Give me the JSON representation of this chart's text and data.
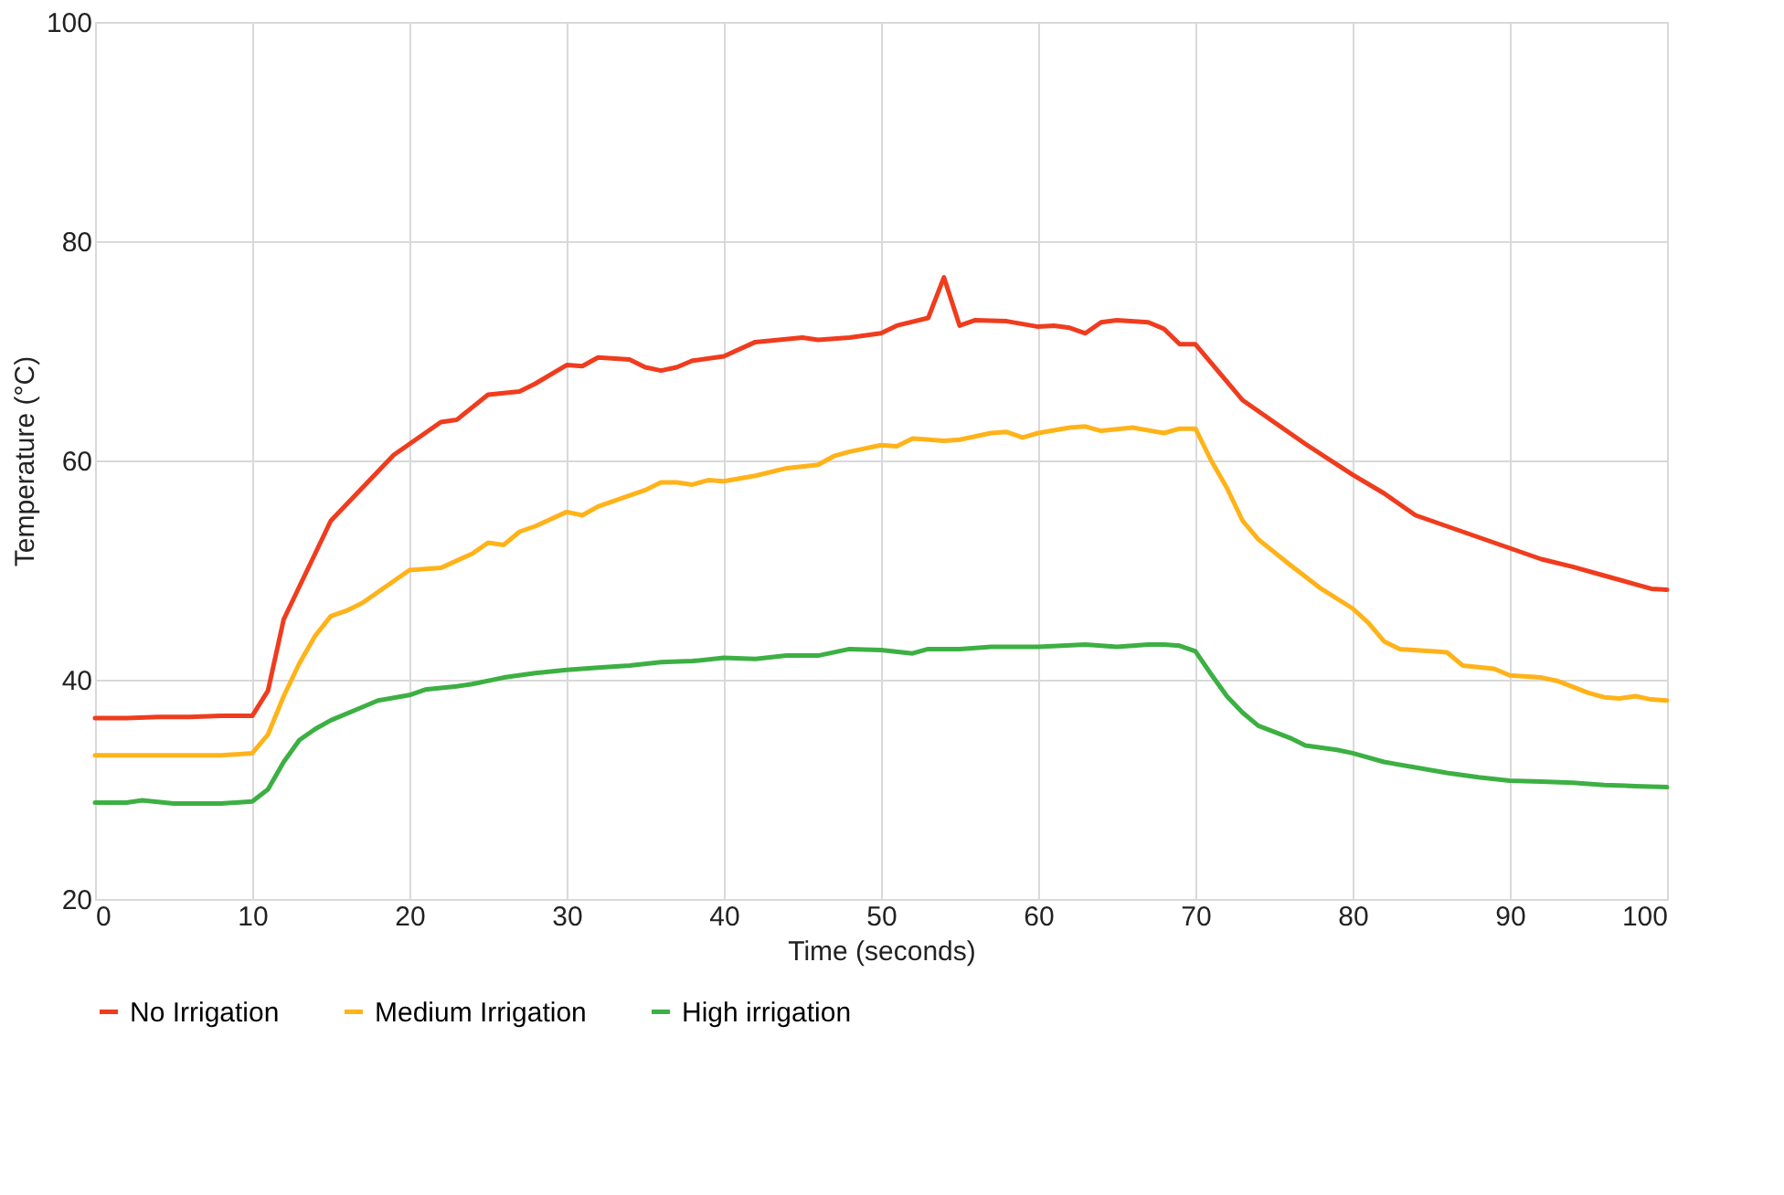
{
  "chart_data": {
    "type": "line",
    "xlabel": "Time (seconds)",
    "ylabel": "Temperature (°C)",
    "xlim": [
      0,
      100
    ],
    "xticks": [
      0,
      10,
      20,
      30,
      40,
      50,
      60,
      70,
      80,
      90,
      100
    ],
    "ylim": [
      20,
      100
    ],
    "yticks": [
      20,
      40,
      60,
      80,
      100
    ],
    "grid": true,
    "legend": "bottom",
    "marker": "none",
    "line_style": "solid",
    "series": [
      {
        "name": "No Irrigation",
        "color": "#f03c1e",
        "x": [
          0,
          2,
          4,
          6,
          8,
          10,
          11,
          12,
          13,
          14,
          15,
          16,
          17,
          18,
          19,
          20,
          22,
          23,
          25,
          27,
          28,
          30,
          31,
          32,
          34,
          35,
          36,
          37,
          38,
          40,
          42,
          45,
          46,
          48,
          50,
          51,
          53,
          54,
          55,
          56,
          58,
          60,
          61,
          62,
          63,
          64,
          65,
          67,
          68,
          69,
          70,
          72,
          73,
          75,
          77,
          80,
          82,
          84,
          86,
          88,
          90,
          92,
          94,
          96,
          98,
          99,
          100
        ],
        "values": [
          36.5,
          36.5,
          36.6,
          36.6,
          36.7,
          36.7,
          39,
          45.5,
          48.5,
          51.5,
          54.5,
          56,
          57.5,
          59,
          60.5,
          61.5,
          63.5,
          63.7,
          66,
          66.3,
          67,
          68.7,
          68.6,
          69.4,
          69.2,
          68.5,
          68.2,
          68.5,
          69.1,
          69.5,
          70.8,
          71.2,
          71,
          71.2,
          71.6,
          72.3,
          73,
          76.7,
          72.3,
          72.8,
          72.7,
          72.2,
          72.3,
          72.1,
          71.6,
          72.6,
          72.8,
          72.6,
          72,
          70.6,
          70.6,
          67.2,
          65.5,
          63.5,
          61.5,
          58.7,
          57,
          55,
          54,
          53,
          52,
          51,
          50.3,
          49.5,
          48.7,
          48.3,
          48.2
        ]
      },
      {
        "name": "Medium Irrigation",
        "color": "#ffb319",
        "x": [
          0,
          2,
          4,
          6,
          8,
          10,
          11,
          12,
          13,
          14,
          15,
          16,
          17,
          18,
          19,
          20,
          22,
          24,
          25,
          26,
          27,
          28,
          30,
          31,
          32,
          34,
          35,
          36,
          37,
          38,
          39,
          40,
          42,
          44,
          46,
          47,
          48,
          50,
          51,
          52,
          54,
          55,
          57,
          58,
          59,
          60,
          62,
          63,
          64,
          66,
          68,
          69,
          70,
          71,
          72,
          73,
          74,
          76,
          78,
          80,
          81,
          82,
          83,
          85,
          86,
          87,
          89,
          90,
          92,
          93,
          95,
          96,
          97,
          98,
          99,
          100
        ],
        "values": [
          33.1,
          33.1,
          33.1,
          33.1,
          33.1,
          33.3,
          35,
          38.5,
          41.5,
          44,
          45.8,
          46.3,
          47,
          48,
          49,
          50,
          50.2,
          51.5,
          52.5,
          52.3,
          53.5,
          54,
          55.3,
          55,
          55.8,
          56.8,
          57.3,
          58,
          58,
          57.8,
          58.2,
          58.1,
          58.6,
          59.3,
          59.6,
          60.4,
          60.8,
          61.4,
          61.3,
          62,
          61.8,
          61.9,
          62.5,
          62.6,
          62.1,
          62.5,
          63,
          63.1,
          62.7,
          63,
          62.5,
          62.9,
          62.9,
          60,
          57.5,
          54.5,
          52.8,
          50.5,
          48.3,
          46.5,
          45.2,
          43.5,
          42.8,
          42.6,
          42.5,
          41.3,
          41,
          40.4,
          40.2,
          39.9,
          38.8,
          38.4,
          38.3,
          38.5,
          38.2,
          38.1
        ]
      },
      {
        "name": "High irrigation",
        "color": "#3cb043",
        "x": [
          0,
          2,
          3,
          5,
          8,
          10,
          11,
          12,
          13,
          14,
          15,
          17,
          18,
          20,
          21,
          23,
          24,
          26,
          28,
          30,
          32,
          34,
          36,
          38,
          40,
          42,
          44,
          46,
          48,
          50,
          52,
          53,
          55,
          57,
          60,
          63,
          65,
          67,
          68,
          69,
          70,
          71,
          72,
          73,
          74,
          76,
          77,
          79,
          80,
          82,
          84,
          86,
          88,
          90,
          92,
          94,
          96,
          98,
          100
        ],
        "values": [
          28.8,
          28.8,
          29,
          28.7,
          28.7,
          28.9,
          30,
          32.5,
          34.5,
          35.5,
          36.3,
          37.5,
          38.1,
          38.6,
          39.1,
          39.4,
          39.6,
          40.2,
          40.6,
          40.9,
          41.1,
          41.3,
          41.6,
          41.7,
          42,
          41.9,
          42.2,
          42.2,
          42.8,
          42.7,
          42.4,
          42.8,
          42.8,
          43,
          43,
          43.2,
          43,
          43.2,
          43.2,
          43.1,
          42.6,
          40.5,
          38.5,
          37,
          35.8,
          34.7,
          34,
          33.6,
          33.3,
          32.5,
          32,
          31.5,
          31.1,
          30.8,
          30.7,
          30.6,
          30.4,
          30.3,
          30.2
        ]
      }
    ]
  }
}
